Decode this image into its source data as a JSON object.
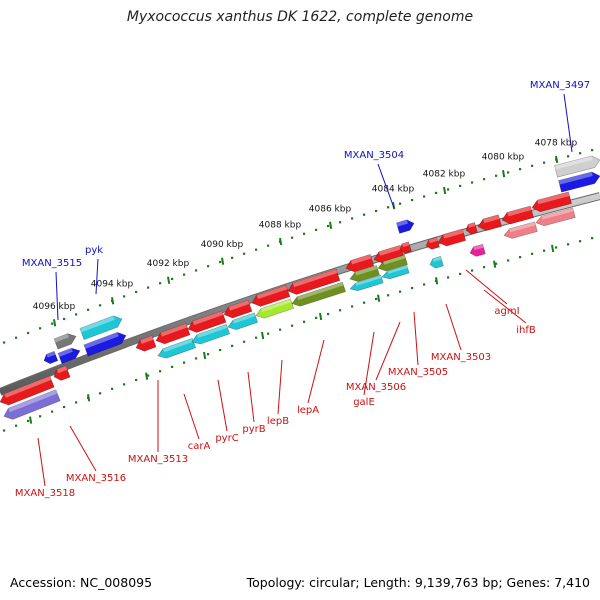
{
  "title": "Myxococcus xanthus DK 1622, complete genome",
  "accession": "Accession: NC_008095",
  "topology": "Topology: circular; Length: 9,139,763 bp; Genes: 7,410",
  "scale_labels": [
    "4078 kbp",
    "4080 kbp",
    "4082 kbp",
    "4084 kbp",
    "4086 kbp",
    "4088 kbp",
    "4090 kbp",
    "4092 kbp",
    "4094 kbp",
    "4096 kbp"
  ],
  "forward_gene_labels": [
    "MXAN_3497",
    "MXAN_3504",
    "pyk",
    "MXAN_3515"
  ],
  "reverse_gene_labels": [
    "ihfB",
    "agmI",
    "MXAN_3503",
    "MXAN_3505",
    "MXAN_3506",
    "galE",
    "lepA",
    "lepB",
    "pyrB",
    "pyrC",
    "carA",
    "MXAN_3513",
    "MXAN_3516",
    "MXAN_3518"
  ],
  "colors": {
    "backbone": "#888888",
    "tick": "#1a7a1a",
    "forward_label": "#1010c8",
    "reverse_label": "#cc1111",
    "cds_red": "#e8191d",
    "cds_blue": "#1a1ae0",
    "cds_cyan": "#1fc6d6",
    "cds_olive": "#6f8f1f",
    "cds_lime": "#a6e830",
    "cds_purple": "#7b6fd6",
    "cds_pink": "#ee7f86",
    "cds_gray": "#777777",
    "cds_magenta": "#e81e9a"
  }
}
